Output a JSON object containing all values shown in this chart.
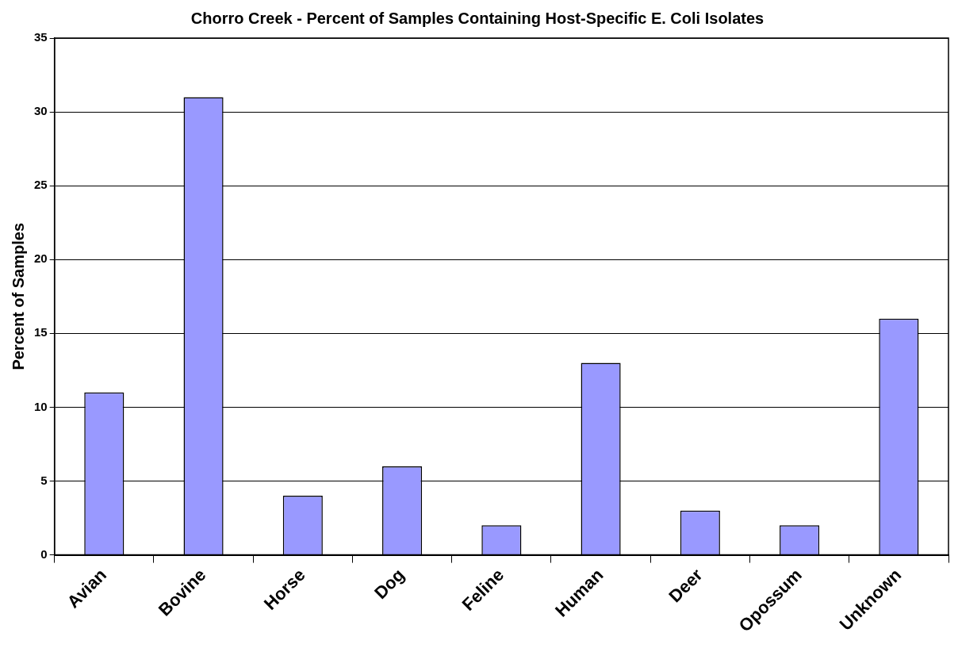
{
  "chart_data": {
    "type": "bar",
    "title": "Chorro Creek - Percent of Samples Containing Host-Specific E. Coli Isolates",
    "ylabel": "Percent of Samples",
    "categories": [
      "Avian",
      "Bovine",
      "Horse",
      "Dog",
      "Feline",
      "Human",
      "Deer",
      "Opossum",
      "Unknown"
    ],
    "values": [
      11,
      31,
      4,
      6,
      2,
      13,
      3,
      2,
      16
    ],
    "color": "#9999ff",
    "ylim": [
      0,
      35
    ],
    "yticks": [
      0,
      5,
      10,
      15,
      20,
      25,
      30,
      35
    ],
    "grid": "y",
    "legend": false
  }
}
